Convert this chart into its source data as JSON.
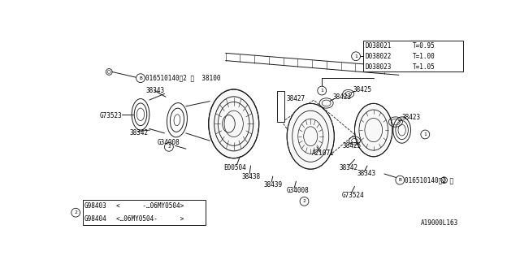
{
  "bg_color": "#ffffff",
  "line_color": "#1a1a1a",
  "fig_width": 6.4,
  "fig_height": 3.2,
  "dpi": 100,
  "watermark": "A19000L163",
  "table_top_right": {
    "rows": [
      [
        "D038021",
        "T=0.95"
      ],
      [
        "D038022",
        "T=1.00"
      ],
      [
        "D038023",
        "T=1.05"
      ]
    ]
  },
  "table_bottom_left": {
    "rows": [
      [
        "G98403",
        "<      -…06MY0504>"
      ],
      [
        "G98404",
        "<…06MY0504-      >"
      ]
    ]
  }
}
